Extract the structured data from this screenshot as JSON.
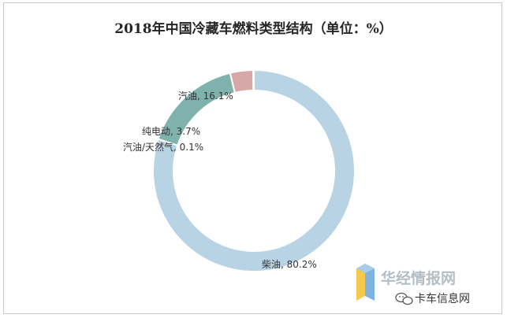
{
  "chart_data": {
    "type": "pie",
    "variant": "donut",
    "title": "2018年中国冷藏车燃料类型结构（单位：%）",
    "slices": [
      {
        "name": "柴油",
        "value": 80.2,
        "label": "柴油, 80.2%",
        "color": "#b7d3e4"
      },
      {
        "name": "汽油",
        "value": 16.1,
        "label": "汽油, 16.1%",
        "color": "#7fb2ad"
      },
      {
        "name": "纯电动",
        "value": 3.7,
        "label": "纯电动, 3.7%",
        "color": "#d6a9a8"
      },
      {
        "name": "汽油/天然气",
        "value": 0.1,
        "label": "汽油/天然气, 0.1%",
        "color": "#b9c6d2"
      }
    ]
  },
  "watermark": {
    "brand": "华经情报网",
    "wechat_label": "卡车信息网",
    "brand_color": "#b5bdc6",
    "icon_names": [
      "huajing-logo-icon",
      "wechat-icon"
    ]
  }
}
